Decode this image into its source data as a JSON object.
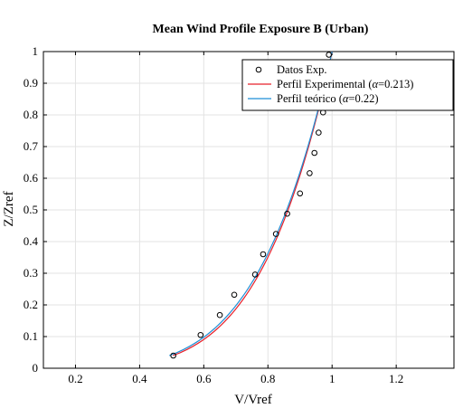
{
  "chart_data": {
    "type": "line",
    "title": "Mean Wind Profile  Exposure B (Urban)",
    "xlabel": "V/Vref",
    "ylabel": "Z/Zref",
    "xlim": [
      0.1,
      1.38
    ],
    "ylim": [
      0,
      1
    ],
    "xticks": [
      0.2,
      0.4,
      0.6,
      0.8,
      1,
      1.2
    ],
    "xtick_labels": [
      "0.2",
      "0.4",
      "0.6",
      "0.8",
      "1",
      "1.2"
    ],
    "yticks": [
      0,
      0.1,
      0.2,
      0.3,
      0.4,
      0.5,
      0.6,
      0.7,
      0.8,
      0.9,
      1
    ],
    "ytick_labels": [
      "0",
      "0.1",
      "0.2",
      "0.3",
      "0.4",
      "0.5",
      "0.6",
      "0.7",
      "0.8",
      "0.9",
      "1"
    ],
    "grid": true,
    "legend_position": "top-right",
    "series": [
      {
        "name": "Datos Exp.",
        "kind": "scatter",
        "marker": "circle",
        "color": "#000000",
        "x": [
          0.505,
          0.59,
          0.65,
          0.695,
          0.76,
          0.785,
          0.825,
          0.86,
          0.9,
          0.93,
          0.945,
          0.958,
          0.972,
          0.99
        ],
        "y": [
          0.04,
          0.105,
          0.168,
          0.232,
          0.296,
          0.36,
          0.424,
          0.488,
          0.552,
          0.616,
          0.68,
          0.744,
          0.808,
          0.99
        ]
      },
      {
        "name": "Perfil Experimental (α=0.213)",
        "legend_label_prefix": "Perfil Experimental (",
        "legend_label_alpha": "α",
        "legend_label_suffix": "=0.213)",
        "kind": "line",
        "color": "#e8202a",
        "exponent": 0.213
      },
      {
        "name": "Perfil teórico (α=0.22)",
        "legend_label_prefix": "Perfil teórico (",
        "legend_label_alpha": "α",
        "legend_label_suffix": "=0.22)",
        "kind": "line",
        "color": "#1f8fd6",
        "exponent": 0.22
      }
    ]
  }
}
